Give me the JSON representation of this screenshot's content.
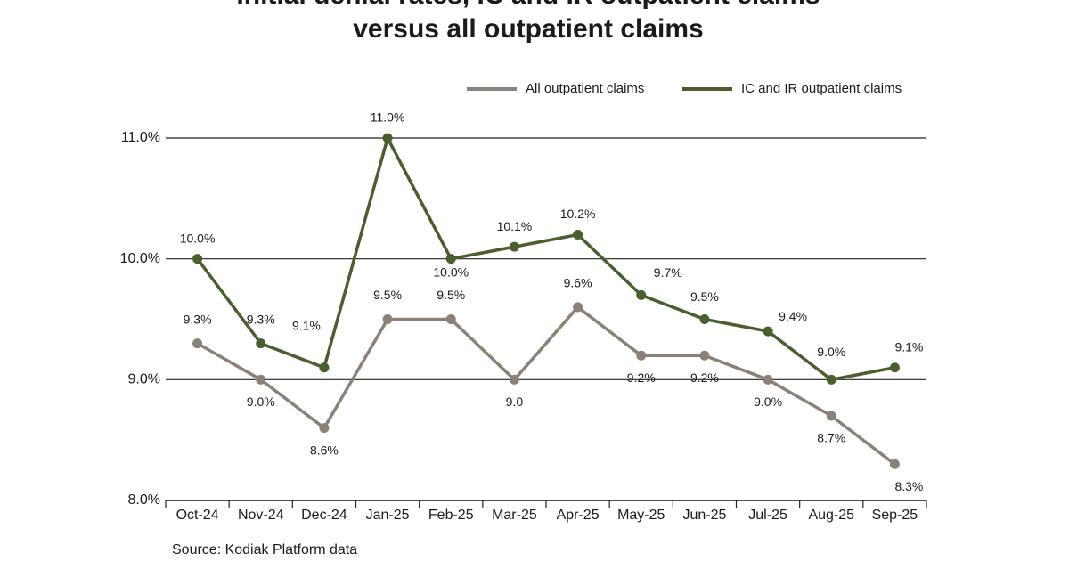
{
  "chart_data": {
    "type": "line",
    "title": "Initial denial rates, IC and IR outpatient claims versus all outpatient claims",
    "categories": [
      "Oct-24",
      "Nov-24",
      "Dec-24",
      "Jan-25",
      "Feb-25",
      "Mar-25",
      "Apr-25",
      "May-25",
      "Jun-25",
      "Jul-25",
      "Aug-25",
      "Sep-25"
    ],
    "series": [
      {
        "name": "All outpatient claims",
        "color": "#8a8279",
        "values": [
          9.3,
          9.0,
          8.6,
          9.5,
          9.5,
          9.0,
          9.6,
          9.2,
          9.2,
          9.0,
          8.7,
          8.3
        ],
        "value_labels": [
          "9.3%",
          "9.0%",
          "8.6%",
          "9.5%",
          "9.5%",
          "9.0",
          "9.6%",
          "9.2%",
          "9.2%",
          "9.0%",
          "8.7%",
          "8.3%"
        ]
      },
      {
        "name": "IC and IR outpatient claims",
        "color": "#4a5e2e",
        "values": [
          10.0,
          9.3,
          9.1,
          11.0,
          10.0,
          10.1,
          10.2,
          9.7,
          9.5,
          9.4,
          9.0,
          9.1
        ],
        "value_labels": [
          "10.0%",
          "9.3%",
          "9.1%",
          "11.0%",
          "10.0%",
          "10.1%",
          "10.2%",
          "9.7%",
          "9.5%",
          "9.4%",
          "9.0%",
          "9.1%"
        ]
      }
    ],
    "ylim": [
      8,
      11
    ],
    "yticks": [
      {
        "value": 8,
        "label": "8.0%"
      },
      {
        "value": 9,
        "label": "9.0%"
      },
      {
        "value": 10,
        "label": "10.0%"
      },
      {
        "value": 11,
        "label": "11.0%"
      }
    ],
    "grid": true,
    "legend": "top-right",
    "source": "Source: Kodiak Platform data"
  }
}
